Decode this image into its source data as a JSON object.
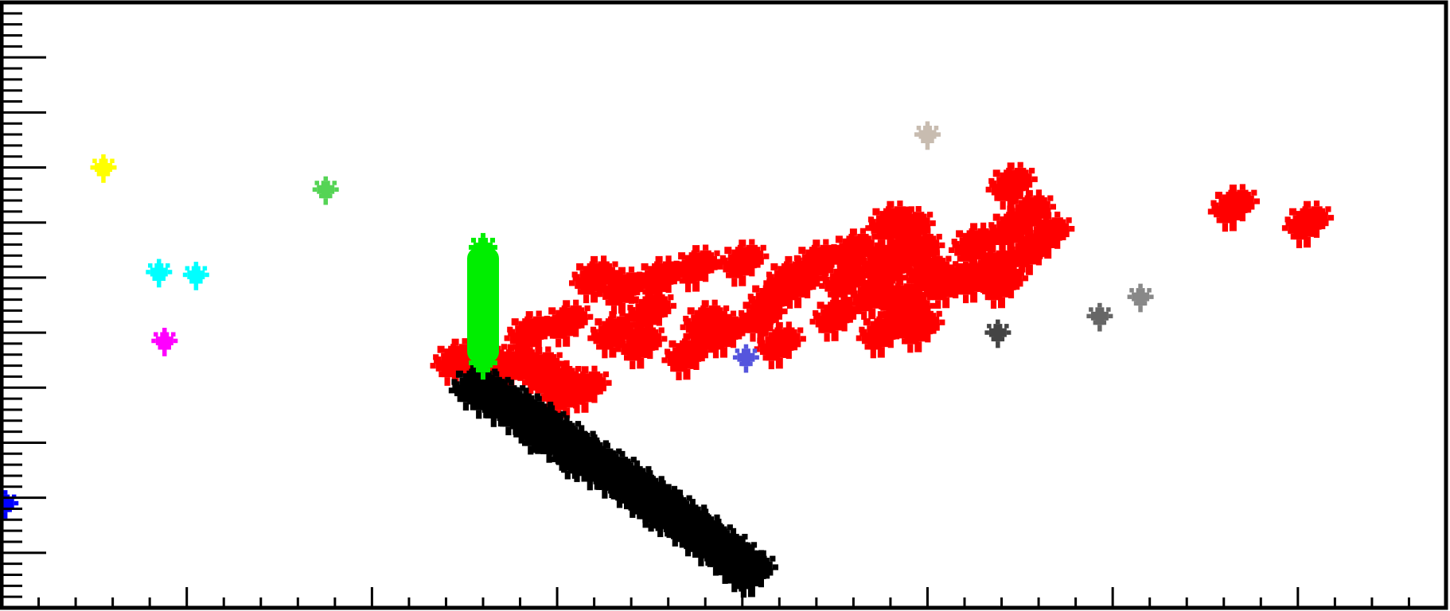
{
  "chart_data": {
    "type": "scatter",
    "title": "",
    "xlabel": "",
    "ylabel": "",
    "grid": false,
    "legend": "none",
    "background": "#ffffff",
    "frame_color": "#000000",
    "x_major_ticks": [
      1.0,
      2.0,
      3.0,
      4.0,
      5.0,
      6.0,
      7.0
    ],
    "y_major_ticks": [
      1.0,
      2.0,
      3.0,
      4.0,
      5.0,
      6.0,
      7.0,
      8.0,
      9.0,
      10.0
    ],
    "xlim": [
      0,
      7.8
    ],
    "ylim": [
      0,
      11
    ],
    "series": [
      {
        "color": "#ff0000",
        "style": "cloud",
        "points": [
          [
            2.45,
            4.5
          ],
          [
            2.6,
            4.5
          ],
          [
            2.75,
            4.4
          ],
          [
            2.9,
            4.35
          ],
          [
            3.0,
            4.1
          ],
          [
            3.05,
            3.9
          ],
          [
            3.15,
            4.0
          ],
          [
            2.85,
            5.0
          ],
          [
            3.05,
            5.2
          ],
          [
            3.2,
            6.0
          ],
          [
            3.3,
            5.0
          ],
          [
            3.35,
            5.8
          ],
          [
            3.5,
            5.4
          ],
          [
            3.55,
            6.0
          ],
          [
            3.7,
            4.6
          ],
          [
            3.75,
            6.2
          ],
          [
            3.8,
            5.2
          ],
          [
            3.9,
            5.0
          ],
          [
            4.0,
            6.3
          ],
          [
            4.1,
            5.3
          ],
          [
            4.2,
            4.8
          ],
          [
            4.3,
            5.9
          ],
          [
            4.4,
            6.3
          ],
          [
            4.5,
            5.3
          ],
          [
            4.6,
            6.5
          ],
          [
            4.7,
            5.7
          ],
          [
            4.8,
            6.2
          ],
          [
            4.95,
            6.5
          ],
          [
            4.25,
            6.0
          ],
          [
            3.45,
            4.8
          ],
          [
            4.15,
            5.6
          ],
          [
            4.55,
            5.95
          ],
          [
            4.75,
            5.0
          ],
          [
            4.8,
            7.0
          ],
          [
            4.9,
            6.9
          ],
          [
            4.75,
            6.3
          ],
          [
            4.85,
            5.6
          ],
          [
            4.95,
            5.1
          ],
          [
            4.9,
            5.4
          ],
          [
            5.1,
            5.9
          ],
          [
            5.0,
            6.1
          ],
          [
            5.25,
            6.6
          ],
          [
            5.35,
            6.2
          ],
          [
            5.45,
            6.9
          ],
          [
            5.55,
            7.2
          ],
          [
            5.45,
            7.7
          ],
          [
            5.65,
            6.8
          ],
          [
            5.4,
            5.9
          ],
          [
            5.55,
            6.5
          ],
          [
            5.25,
            6.0
          ],
          [
            6.65,
            7.3
          ],
          [
            7.05,
            7.0
          ]
        ]
      },
      {
        "color": "#000000",
        "style": "cloud",
        "points": [
          [
            2.55,
            4.05
          ],
          [
            2.7,
            3.75
          ],
          [
            2.85,
            3.45
          ],
          [
            3.0,
            3.1
          ],
          [
            3.15,
            2.75
          ],
          [
            3.3,
            2.45
          ],
          [
            3.45,
            2.1
          ],
          [
            3.6,
            1.75
          ],
          [
            3.75,
            1.4
          ],
          [
            3.9,
            1.05
          ],
          [
            4.0,
            0.75
          ],
          [
            2.62,
            3.9
          ],
          [
            2.78,
            3.6
          ],
          [
            2.92,
            3.28
          ],
          [
            3.08,
            2.92
          ],
          [
            3.22,
            2.6
          ],
          [
            3.38,
            2.28
          ],
          [
            3.52,
            1.92
          ],
          [
            3.68,
            1.58
          ],
          [
            3.82,
            1.22
          ],
          [
            3.95,
            0.9
          ],
          [
            4.05,
            0.65
          ],
          [
            3.1,
            2.8
          ],
          [
            2.9,
            3.25
          ],
          [
            3.55,
            1.85
          ]
        ]
      },
      {
        "color": "#00ee00",
        "style": "column",
        "points": [
          [
            2.6,
            4.45
          ],
          [
            2.6,
            5.0
          ],
          [
            2.6,
            5.6
          ],
          [
            2.6,
            6.2
          ],
          [
            2.6,
            6.55
          ]
        ]
      },
      {
        "color": "#ffff00",
        "style": "blob",
        "points": [
          [
            0.55,
            8.0
          ]
        ]
      },
      {
        "color": "#00ffff",
        "style": "blob",
        "points": [
          [
            0.85,
            6.1
          ],
          [
            1.05,
            6.05
          ]
        ]
      },
      {
        "color": "#ff00ff",
        "style": "blob",
        "points": [
          [
            0.88,
            4.85
          ]
        ]
      },
      {
        "color": "#55d455",
        "style": "blob",
        "points": [
          [
            1.75,
            7.6
          ]
        ]
      },
      {
        "color": "#0000ff",
        "style": "blob",
        "points": [
          [
            0.02,
            1.9
          ]
        ]
      },
      {
        "color": "#5555dd",
        "style": "blob",
        "points": [
          [
            4.02,
            4.55
          ]
        ]
      },
      {
        "color": "#c8bcb0",
        "style": "blob",
        "points": [
          [
            5.0,
            8.6
          ]
        ]
      },
      {
        "color": "#444444",
        "style": "blob",
        "points": [
          [
            5.38,
            5.0
          ]
        ]
      },
      {
        "color": "#666666",
        "style": "blob",
        "points": [
          [
            5.93,
            5.3
          ]
        ]
      },
      {
        "color": "#888888",
        "style": "blob",
        "points": [
          [
            6.15,
            5.65
          ]
        ]
      }
    ]
  }
}
